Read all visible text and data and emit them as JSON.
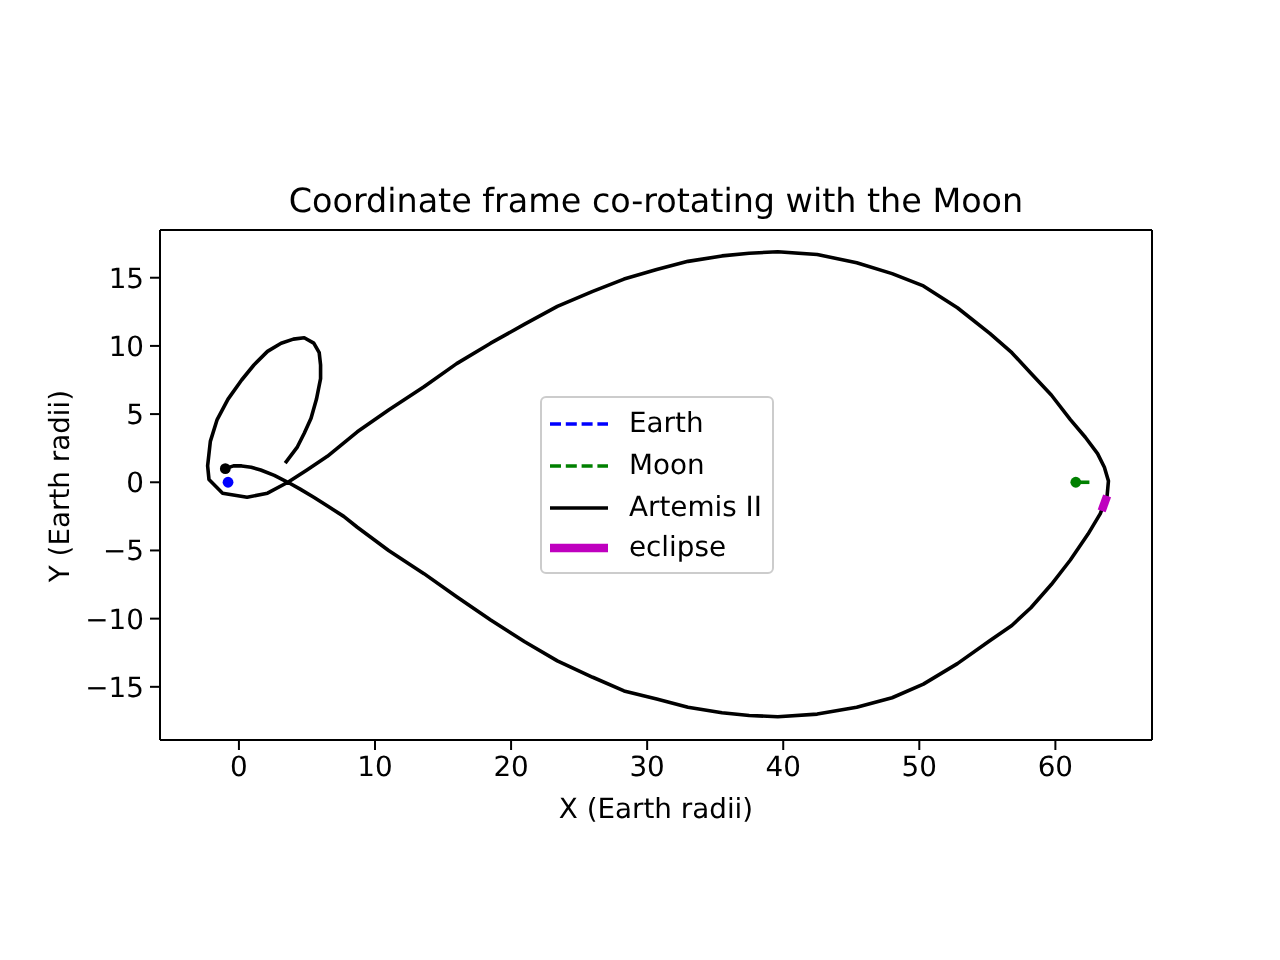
{
  "chart_data": {
    "type": "line",
    "title": "Coordinate frame co-rotating with the Moon",
    "xlabel": "X (Earth radii)",
    "ylabel": "Y (Earth radii)",
    "xlim": [
      -5.8,
      67.1
    ],
    "ylim": [
      -18.9,
      18.5
    ],
    "xticks": [
      0,
      10,
      20,
      30,
      40,
      50,
      60
    ],
    "yticks": [
      -15,
      -10,
      -5,
      0,
      5,
      10,
      15
    ],
    "legend": "center",
    "series": [
      {
        "name": "Earth",
        "type": "line",
        "color": "#0000ff",
        "line_style": "dashed",
        "marker": "circle",
        "x": [
          -0.8
        ],
        "values": [
          0
        ]
      },
      {
        "name": "Moon",
        "type": "line",
        "color": "#008000",
        "line_style": "dashed",
        "x": [
          62.5,
          61.5
        ],
        "values": [
          0,
          0
        ]
      },
      {
        "name": "Artemis II",
        "type": "line",
        "color": "#000000",
        "line_style": "solid",
        "x": [
          -1.0,
          -0.4,
          0.2,
          0.9,
          1.6,
          2.6,
          3.6,
          4.5,
          5.5,
          6.6,
          7.7,
          8.7,
          11.0,
          13.6,
          16.0,
          18.5,
          21.0,
          23.4,
          26.0,
          28.3,
          30.7,
          33.0,
          35.5,
          37.5,
          39.6,
          42.5,
          45.4,
          48.0,
          50.3,
          52.8,
          55.2,
          56.8,
          58.2,
          59.7,
          61.1,
          62.4,
          63.3,
          63.8,
          63.9,
          63.6,
          63.1,
          62.2,
          61.1,
          59.7,
          58.2,
          56.8,
          55.2,
          52.8,
          50.3,
          48.0,
          45.4,
          42.5,
          39.6,
          37.5,
          35.5,
          33.0,
          30.7,
          28.3,
          26.0,
          23.4,
          21.0,
          18.5,
          16.0,
          13.6,
          11.0,
          8.7,
          6.5,
          5.0,
          3.6,
          2.1,
          0.6,
          -1.2,
          -2.2,
          -2.3,
          -2.1,
          -1.6,
          -0.8,
          0.2,
          1.1,
          2.1,
          3.1,
          4.0,
          4.8,
          5.5,
          5.9,
          6.0,
          6.0,
          5.7,
          5.3,
          4.8,
          4.3,
          3.4
        ],
        "values": [
          1.0,
          1.2,
          1.2,
          1.1,
          0.9,
          0.5,
          0.0,
          -0.5,
          -1.1,
          -1.8,
          -2.5,
          -3.3,
          -5.0,
          -6.7,
          -8.4,
          -10.1,
          -11.7,
          -13.1,
          -14.3,
          -15.3,
          -15.9,
          -16.5,
          -16.9,
          -17.1,
          -17.2,
          -17.0,
          -16.5,
          -15.8,
          -14.8,
          -13.3,
          -11.6,
          -10.5,
          -9.2,
          -7.5,
          -5.7,
          -3.8,
          -2.3,
          -1.0,
          0.1,
          1.1,
          2.1,
          3.3,
          4.6,
          6.4,
          8.0,
          9.5,
          10.9,
          12.8,
          14.4,
          15.3,
          16.1,
          16.7,
          16.9,
          16.8,
          16.6,
          16.2,
          15.6,
          14.9,
          14.0,
          12.9,
          11.6,
          10.2,
          8.7,
          7.0,
          5.3,
          3.7,
          1.9,
          0.9,
          0.0,
          -0.8,
          -1.1,
          -0.8,
          0.2,
          1.2,
          3.0,
          4.6,
          6.1,
          7.5,
          8.6,
          9.6,
          10.2,
          10.5,
          10.6,
          10.2,
          9.5,
          8.6,
          7.6,
          6.1,
          4.7,
          3.6,
          2.6,
          1.4
        ]
      },
      {
        "name": "eclipse",
        "type": "line",
        "color": "#bf00bf",
        "line_style": "solid",
        "x": [
          63.8,
          63.4
        ],
        "values": [
          -1.0,
          -2.1
        ]
      },
      {
        "type": "scatter",
        "color": "#008000",
        "marker": "circle",
        "x": [
          61.5
        ],
        "values": [
          0
        ]
      },
      {
        "type": "scatter",
        "color": "#000000",
        "marker": "circle",
        "x": [
          -1.0
        ],
        "values": [
          1.0
        ]
      }
    ]
  }
}
